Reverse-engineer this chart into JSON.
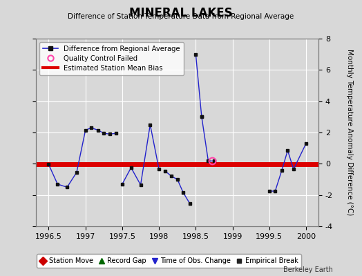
{
  "title": "MINERAL LAKES",
  "subtitle": "Difference of Station Temperature Data from Regional Average",
  "ylabel_right": "Monthly Temperature Anomaly Difference (°C)",
  "xlim": [
    1996.33,
    2000.17
  ],
  "ylim": [
    -4,
    8
  ],
  "yticks": [
    -4,
    -2,
    0,
    2,
    4,
    6,
    8
  ],
  "xticks": [
    1996.5,
    1997,
    1997.5,
    1998,
    1998.5,
    1999,
    1999.5,
    2000
  ],
  "xticklabels": [
    "1996.5",
    "1997",
    "1997.5",
    "1998",
    "1998.5",
    "1999",
    "1999.5",
    "2000"
  ],
  "background_color": "#d8d8d8",
  "plot_bg_color": "#d8d8d8",
  "grid_color": "#ffffff",
  "bias_line_value": -0.05,
  "bias_line_color": "#dd0000",
  "line_color": "#2222cc",
  "marker_color": "#111111",
  "qc_fail_x": [
    1998.72
  ],
  "qc_fail_y": [
    0.18
  ],
  "footnote": "Berkeley Earth",
  "segments": [
    {
      "x": [
        1996.5,
        1996.62,
        1996.75,
        1996.88,
        1997.0,
        1997.08,
        1997.17,
        1997.25,
        1997.33,
        1997.42
      ],
      "y": [
        -0.05,
        -1.3,
        -1.5,
        -0.55,
        2.15,
        2.3,
        2.15,
        1.95,
        1.9,
        1.95
      ]
    },
    {
      "x": [
        1997.5,
        1997.62,
        1997.75,
        1997.88,
        1998.0
      ],
      "y": [
        -1.3,
        -0.25,
        -1.35,
        2.5,
        -0.35
      ]
    },
    {
      "x": [
        1998.08,
        1998.17,
        1998.25,
        1998.33,
        1998.42
      ],
      "y": [
        -0.45,
        -0.8,
        -1.0,
        -1.85,
        -2.55
      ]
    },
    {
      "x": [
        1998.5,
        1998.58
      ],
      "y": [
        7.0,
        3.0
      ]
    },
    {
      "x": [
        1998.58,
        1998.67,
        1998.75
      ],
      "y": [
        3.0,
        0.18,
        0.18
      ]
    },
    {
      "x": [
        1999.5,
        1999.58,
        1999.67,
        1999.75,
        1999.83,
        2000.0
      ],
      "y": [
        -1.75,
        -1.75,
        -0.42,
        0.85,
        -0.35,
        1.3
      ]
    }
  ]
}
